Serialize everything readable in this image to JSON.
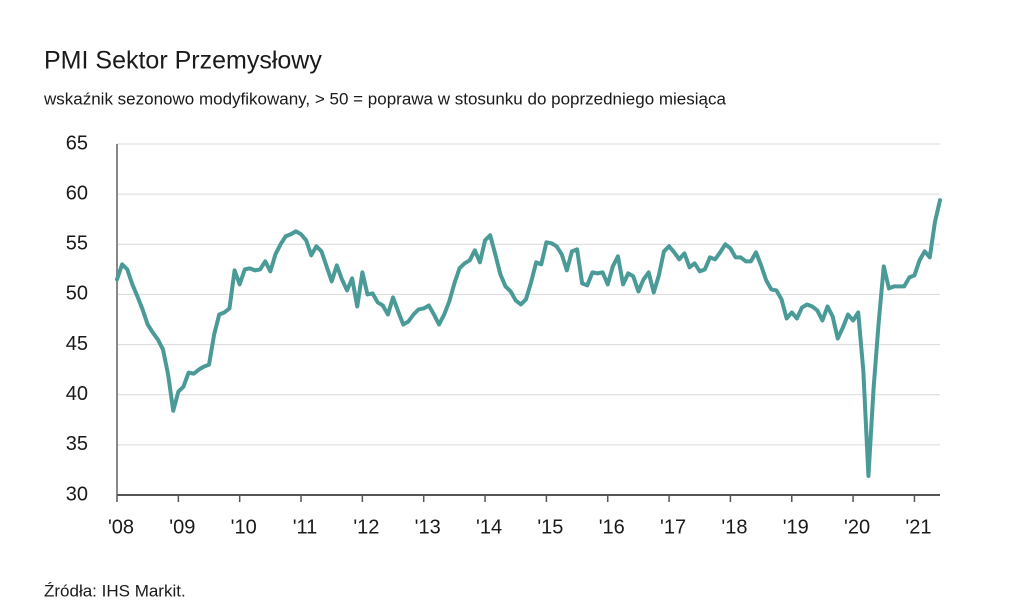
{
  "chart_data": {
    "type": "line",
    "title": "PMI Sektor Przemysłowy",
    "subtitle": "wskaźnik sezonowo modyfikowany, > 50 = poprawa w stosunku do poprzedniego miesiąca",
    "source": "Źródła: IHS Markit.",
    "color": "#4a9a98",
    "grid": true,
    "ylim": [
      30,
      65
    ],
    "yticks": [
      30,
      35,
      40,
      45,
      50,
      55,
      60,
      65
    ],
    "categories": [
      "'08",
      null,
      null,
      null,
      null,
      null,
      null,
      null,
      null,
      null,
      null,
      null,
      "'09",
      null,
      null,
      null,
      null,
      null,
      null,
      null,
      null,
      null,
      null,
      null,
      "'10",
      null,
      null,
      null,
      null,
      null,
      null,
      null,
      null,
      null,
      null,
      null,
      "'11",
      null,
      null,
      null,
      null,
      null,
      null,
      null,
      null,
      null,
      null,
      null,
      "'12",
      null,
      null,
      null,
      null,
      null,
      null,
      null,
      null,
      null,
      null,
      null,
      "'13",
      null,
      null,
      null,
      null,
      null,
      null,
      null,
      null,
      null,
      null,
      null,
      "'14",
      null,
      null,
      null,
      null,
      null,
      null,
      null,
      null,
      null,
      null,
      null,
      "'15",
      null,
      null,
      null,
      null,
      null,
      null,
      null,
      null,
      null,
      null,
      null,
      "'16",
      null,
      null,
      null,
      null,
      null,
      null,
      null,
      null,
      null,
      null,
      null,
      "'17",
      null,
      null,
      null,
      null,
      null,
      null,
      null,
      null,
      null,
      null,
      null,
      "'18",
      null,
      null,
      null,
      null,
      null,
      null,
      null,
      null,
      null,
      null,
      null,
      "'19",
      null,
      null,
      null,
      null,
      null,
      null,
      null,
      null,
      null,
      null,
      null,
      "'20",
      null,
      null,
      null,
      null,
      null,
      null,
      null,
      null,
      null,
      null,
      null,
      "'21",
      null,
      null,
      null,
      null,
      null
    ],
    "values": [
      51.5,
      53.0,
      52.5,
      51.0,
      49.8,
      48.5,
      47.0,
      46.2,
      45.5,
      44.5,
      42.0,
      38.4,
      40.3,
      40.8,
      42.2,
      42.1,
      42.5,
      42.8,
      43.0,
      46.0,
      48.0,
      48.2,
      48.6,
      52.4,
      51.0,
      52.5,
      52.6,
      52.4,
      52.5,
      53.3,
      52.3,
      54.0,
      55.0,
      55.8,
      56.0,
      56.3,
      56.0,
      55.4,
      53.9,
      54.8,
      54.3,
      52.8,
      51.3,
      52.9,
      51.5,
      50.4,
      51.6,
      48.8,
      52.2,
      50.0,
      50.1,
      49.2,
      48.9,
      48.0,
      49.7,
      48.3,
      47.0,
      47.3,
      48.0,
      48.5,
      48.6,
      48.9,
      48.0,
      47.0,
      48.0,
      49.3,
      51.1,
      52.6,
      53.1,
      53.4,
      54.4,
      53.2,
      55.4,
      55.9,
      54.0,
      52.0,
      50.8,
      50.3,
      49.4,
      49.0,
      49.5,
      51.2,
      53.2,
      53.0,
      55.2,
      55.1,
      54.8,
      54.0,
      52.4,
      54.3,
      54.5,
      51.1,
      50.9,
      52.2,
      52.1,
      52.2,
      51.0,
      52.8,
      53.8,
      51.0,
      52.1,
      51.8,
      50.3,
      51.5,
      52.2,
      50.2,
      51.9,
      54.3,
      54.8,
      54.2,
      53.5,
      54.1,
      52.7,
      53.1,
      52.3,
      52.5,
      53.7,
      53.5,
      54.2,
      55.0,
      54.6,
      53.7,
      53.7,
      53.3,
      53.3,
      54.2,
      52.9,
      51.4,
      50.5,
      50.4,
      49.5,
      47.6,
      48.2,
      47.6,
      48.7,
      49.0,
      48.8,
      48.4,
      47.4,
      48.8,
      47.8,
      45.6,
      46.7,
      48.0,
      47.4,
      48.2,
      42.4,
      31.9,
      40.6,
      47.2,
      52.8,
      50.6,
      50.8,
      50.8,
      50.8,
      51.7,
      51.9,
      53.4,
      54.3,
      53.7,
      57.2,
      59.4
    ]
  }
}
